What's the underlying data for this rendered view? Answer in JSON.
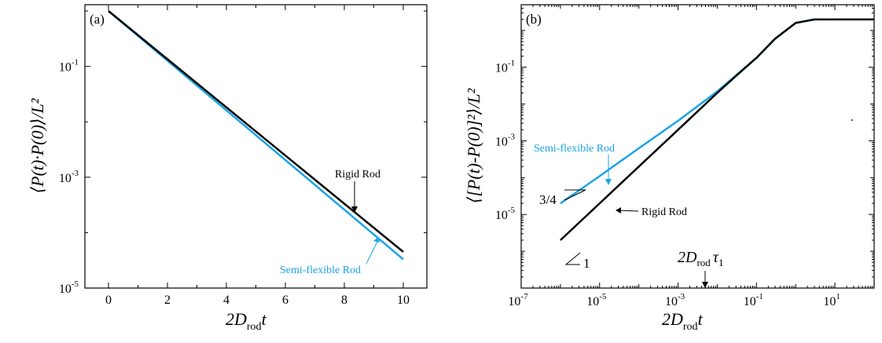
{
  "chart_data": [
    {
      "panel": "(a)",
      "type": "line",
      "yscale": "log",
      "xlim": [
        -0.8,
        10.8
      ],
      "ylim": [
        1e-05,
        1.3
      ],
      "xticks": [
        "0",
        "2",
        "4",
        "6",
        "8",
        "10"
      ],
      "xtick_values": [
        0,
        2,
        4,
        6,
        8,
        10
      ],
      "yticks": [
        {
          "base": "10",
          "exp": "-5",
          "value": 1e-05
        },
        {
          "base": "10",
          "exp": "-3",
          "value": 0.001
        },
        {
          "base": "10",
          "exp": "-1",
          "value": 0.1
        }
      ],
      "xlabel": {
        "main": "2D",
        "sub": "rod",
        "tail": "t"
      },
      "ylabel": "⟨P(t)·P(0)⟩/L²",
      "series": [
        {
          "name": "Rigid Rod",
          "color": "#000000",
          "x": [
            0,
            10
          ],
          "y": [
            1.0,
            4.5e-05
          ]
        },
        {
          "name": "Semi-flexible Rod",
          "color": "#1aa3e8",
          "x": [
            0,
            10
          ],
          "y": [
            1.0,
            3.3e-05
          ]
        }
      ],
      "annotations": {
        "rigid": "Rigid Rod",
        "semi": "Semi-flexible Rod"
      }
    },
    {
      "panel": "(b)",
      "type": "line",
      "xscale": "log",
      "yscale": "log",
      "xlim": [
        1e-07,
        100
      ],
      "ylim": [
        1e-07,
        5
      ],
      "xticks": [
        {
          "base": "10",
          "exp": "-7",
          "value": 1e-07
        },
        {
          "base": "10",
          "exp": "-5",
          "value": 1e-05
        },
        {
          "base": "10",
          "exp": "-3",
          "value": 0.001
        },
        {
          "base": "10",
          "exp": "-1",
          "value": 0.1
        },
        {
          "base": "10",
          "exp": "1",
          "value": 10
        }
      ],
      "yticks": [
        {
          "base": "10",
          "exp": "-5",
          "value": 1e-05
        },
        {
          "base": "10",
          "exp": "-3",
          "value": 0.001
        },
        {
          "base": "10",
          "exp": "-1",
          "value": 0.1
        }
      ],
      "xlabel": {
        "main": "2D",
        "sub": "rod",
        "tail": "t"
      },
      "ylabel": "⟨[P(t)-P(0)]²⟩/L²",
      "series": [
        {
          "name": "Rigid Rod",
          "color": "#000000",
          "x": [
            1e-06,
            1e-05,
            0.0001,
            0.001,
            0.01,
            0.03,
            0.1,
            0.3,
            1,
            3,
            10,
            100
          ],
          "y": [
            2e-06,
            2e-05,
            0.0002,
            0.002,
            0.02,
            0.058,
            0.18,
            0.6,
            1.6,
            2.0,
            2.0,
            2.0
          ]
        },
        {
          "name": "Semi-flexible Rod",
          "color": "#1aa3e8",
          "x": [
            1e-06,
            1e-05,
            0.0001,
            0.001,
            0.01,
            0.03,
            0.1,
            0.3,
            1,
            3,
            10,
            100
          ],
          "y": [
            2e-05,
            0.00011,
            0.00063,
            0.0035,
            0.022,
            0.06,
            0.18,
            0.6,
            1.6,
            1.98,
            2.0,
            2.0
          ]
        }
      ],
      "annotations": {
        "semi": "Semi-flexible Rod",
        "rigid": "Rigid Rod",
        "slope_semi": "3/4",
        "slope_rigid": "1",
        "tau_main": "2D",
        "tau_sub": "rod",
        "tau_sym": "τ",
        "tau_index": "1"
      }
    }
  ]
}
